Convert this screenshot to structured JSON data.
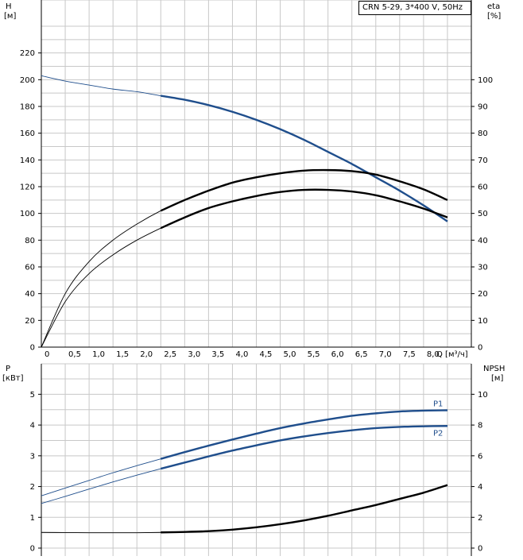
{
  "chart_data": [
    {
      "type": "line",
      "title": "CRN 5-29, 3*400 V, 50Hz",
      "xlabel": "Q [м³/ч]",
      "ylabel_left": "H\n[м]",
      "ylabel_right": "eta\n[%]",
      "xlim": [
        0,
        9.0
      ],
      "ylim_left": [
        0,
        240
      ],
      "ylim_right": [
        0,
        120
      ],
      "x_ticks": [
        "0",
        "0,5",
        "1,0",
        "1,5",
        "2,0",
        "2,5",
        "3,0",
        "3,5",
        "4,0",
        "4,5",
        "5,0",
        "5,5",
        "6,0",
        "6,5",
        "7,0",
        "7,5",
        "8,0"
      ],
      "x_tick_values": [
        0,
        0.5,
        1.0,
        1.5,
        2.0,
        2.5,
        3.0,
        3.5,
        4.0,
        4.5,
        5.0,
        5.5,
        6.0,
        6.5,
        7.0,
        7.5,
        8.0
      ],
      "y_ticks_left": [
        "0",
        "20",
        "40",
        "60",
        "80",
        "100",
        "120",
        "140",
        "160",
        "180",
        "200",
        "220"
      ],
      "y_ticks_right": [
        "0",
        "10",
        "20",
        "30",
        "40",
        "50",
        "60",
        "70",
        "80",
        "90",
        "100"
      ],
      "grid": true,
      "series": [
        {
          "axis": "left",
          "color": "#1f4e8c",
          "x": [
            0,
            0.5,
            1.0,
            1.5,
            2.0,
            2.5,
            3.0,
            3.5,
            4.0,
            4.5,
            5.0,
            5.5,
            6.0,
            6.5,
            7.0,
            7.5,
            8.0,
            8.5
          ],
          "y": [
            203,
            199,
            196,
            193,
            191,
            188,
            185,
            181,
            176,
            170,
            163,
            155,
            146,
            137,
            127,
            117,
            106,
            94
          ]
        },
        {
          "axis": "right",
          "color": "#000000",
          "x": [
            0,
            0.5,
            1.0,
            1.5,
            2.0,
            2.5,
            3.0,
            3.5,
            4.0,
            4.5,
            5.0,
            5.5,
            6.0,
            6.5,
            7.0,
            7.5,
            8.0,
            8.5
          ],
          "y": [
            0,
            20,
            32,
            40,
            46,
            51,
            55,
            58.5,
            61.5,
            63.5,
            65,
            66,
            66.2,
            65.8,
            64.5,
            62,
            59,
            55
          ]
        },
        {
          "axis": "right",
          "color": "#000000",
          "x": [
            0,
            0.5,
            1.0,
            1.5,
            2.0,
            2.5,
            3.0,
            3.5,
            4.0,
            4.5,
            5.0,
            5.5,
            6.0,
            6.5,
            7.0,
            7.5,
            8.0,
            8.5
          ],
          "y": [
            0,
            17,
            27.5,
            34.5,
            40,
            44.5,
            48.5,
            52,
            54.5,
            56.5,
            58,
            58.8,
            58.8,
            58.2,
            56.8,
            54.5,
            51.8,
            48.5
          ]
        }
      ]
    },
    {
      "type": "line",
      "xlabel": "",
      "ylabel_left": "P\n[кВт]",
      "ylabel_right": "NPSH\n[м]",
      "xlim": [
        0,
        9.0
      ],
      "ylim_left": [
        0,
        5.5
      ],
      "ylim_right": [
        0,
        11
      ],
      "y_ticks_left": [
        "0",
        "1",
        "2",
        "3",
        "4",
        "5"
      ],
      "y_ticks_right": [
        "0",
        "2",
        "4",
        "6",
        "8",
        "10"
      ],
      "grid": true,
      "series": [
        {
          "name": "P1",
          "axis": "left",
          "color": "#1f4e8c",
          "x": [
            0,
            0.5,
            1.0,
            1.5,
            2.0,
            2.5,
            3.0,
            3.5,
            4.0,
            4.5,
            5.0,
            5.5,
            6.0,
            6.5,
            7.0,
            7.5,
            8.0,
            8.5
          ],
          "y": [
            1.7,
            1.95,
            2.2,
            2.45,
            2.68,
            2.9,
            3.12,
            3.33,
            3.53,
            3.72,
            3.9,
            4.05,
            4.18,
            4.3,
            4.38,
            4.44,
            4.47,
            4.48
          ]
        },
        {
          "name": "P2",
          "axis": "left",
          "color": "#1f4e8c",
          "x": [
            0,
            0.5,
            1.0,
            1.5,
            2.0,
            2.5,
            3.0,
            3.5,
            4.0,
            4.5,
            5.0,
            5.5,
            6.0,
            6.5,
            7.0,
            7.5,
            8.0,
            8.5
          ],
          "y": [
            1.45,
            1.68,
            1.92,
            2.15,
            2.37,
            2.58,
            2.78,
            2.98,
            3.17,
            3.34,
            3.5,
            3.63,
            3.74,
            3.83,
            3.9,
            3.94,
            3.96,
            3.97
          ]
        },
        {
          "axis": "right",
          "color": "#000000",
          "x": [
            0,
            0.5,
            1.0,
            1.5,
            2.0,
            2.5,
            3.0,
            3.5,
            4.0,
            4.5,
            5.0,
            5.5,
            6.0,
            6.5,
            7.0,
            7.5,
            8.0,
            8.5
          ],
          "y": [
            1.02,
            1.01,
            1.0,
            1.0,
            1.0,
            1.02,
            1.05,
            1.1,
            1.2,
            1.35,
            1.55,
            1.8,
            2.1,
            2.45,
            2.8,
            3.2,
            3.6,
            4.1
          ]
        }
      ]
    }
  ]
}
